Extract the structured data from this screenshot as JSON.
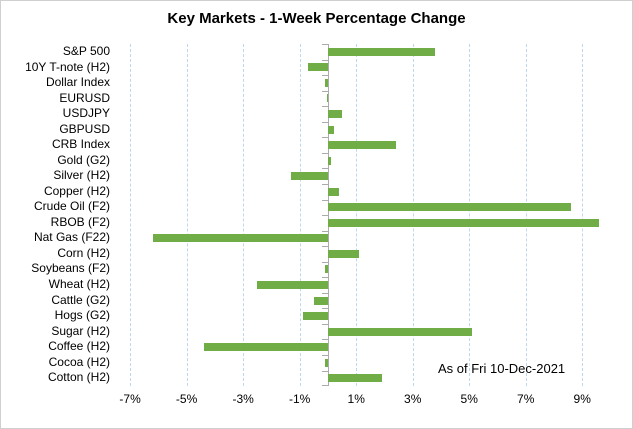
{
  "chart_data": {
    "type": "bar",
    "orientation": "horizontal",
    "title": "Key Markets - 1-Week Percentage Change",
    "annotation": "As of Fri 10-Dec-2021",
    "categories": [
      "S&P 500",
      "10Y T-note (H2)",
      "Dollar Index",
      "EURUSD",
      "USDJPY",
      "GBPUSD",
      "CRB Index",
      "Gold (G2)",
      "Silver (H2)",
      "Copper (H2)",
      "Crude Oil (F2)",
      "RBOB (F2)",
      "Nat Gas (F22)",
      "Corn (H2)",
      "Soybeans (F2)",
      "Wheat (H2)",
      "Cattle (G2)",
      "Hogs (G2)",
      "Sugar (H2)",
      "Coffee (H2)",
      "Cocoa (H2)",
      "Cotton (H2)"
    ],
    "values": [
      3.8,
      -0.7,
      -0.1,
      -0.05,
      0.5,
      0.2,
      2.4,
      0.1,
      -1.3,
      0.4,
      8.6,
      9.6,
      -6.2,
      1.1,
      -0.1,
      -2.5,
      -0.5,
      -0.9,
      5.1,
      -4.4,
      -0.1,
      1.9
    ],
    "unit": "%",
    "xlabel": "",
    "ylabel": "",
    "xlim": [
      -7.5,
      9.7
    ],
    "x_ticks": [
      -7,
      -5,
      -3,
      -1,
      1,
      3,
      5,
      7,
      9
    ],
    "x_tick_labels": [
      "-7%",
      "-5%",
      "-3%",
      "-1%",
      "1%",
      "3%",
      "5%",
      "7%",
      "9%"
    ],
    "grid": "vertical-dashed",
    "legend": "none",
    "colors": {
      "bar": "#70AD47",
      "gridline": "#BDD7EE",
      "axis": "#ABABAB",
      "text": "#000000"
    }
  }
}
